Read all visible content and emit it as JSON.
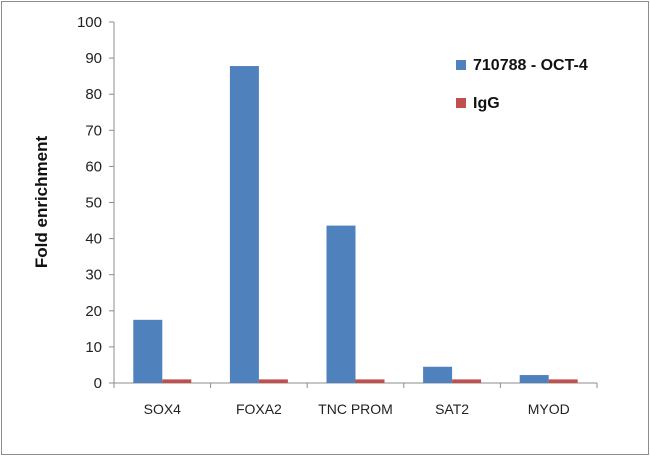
{
  "chart_data": {
    "type": "bar",
    "categories": [
      "SOX4",
      "FOXA2",
      "TNC PROM",
      "SAT2",
      "MYOD"
    ],
    "series": [
      {
        "name": "710788 - OCT-4",
        "values": [
          17.5,
          87.8,
          43.6,
          4.5,
          2.2
        ],
        "color": "#4f81bd"
      },
      {
        "name": "IgG",
        "values": [
          1,
          1,
          1,
          1,
          1
        ],
        "color": "#c0504d"
      }
    ],
    "title": "",
    "xlabel": "",
    "ylabel": "Fold enrichment",
    "ylim": [
      0,
      100
    ],
    "yticks": [
      0,
      10,
      20,
      30,
      40,
      50,
      60,
      70,
      80,
      90,
      100
    ],
    "grid": false,
    "legend": "right"
  }
}
